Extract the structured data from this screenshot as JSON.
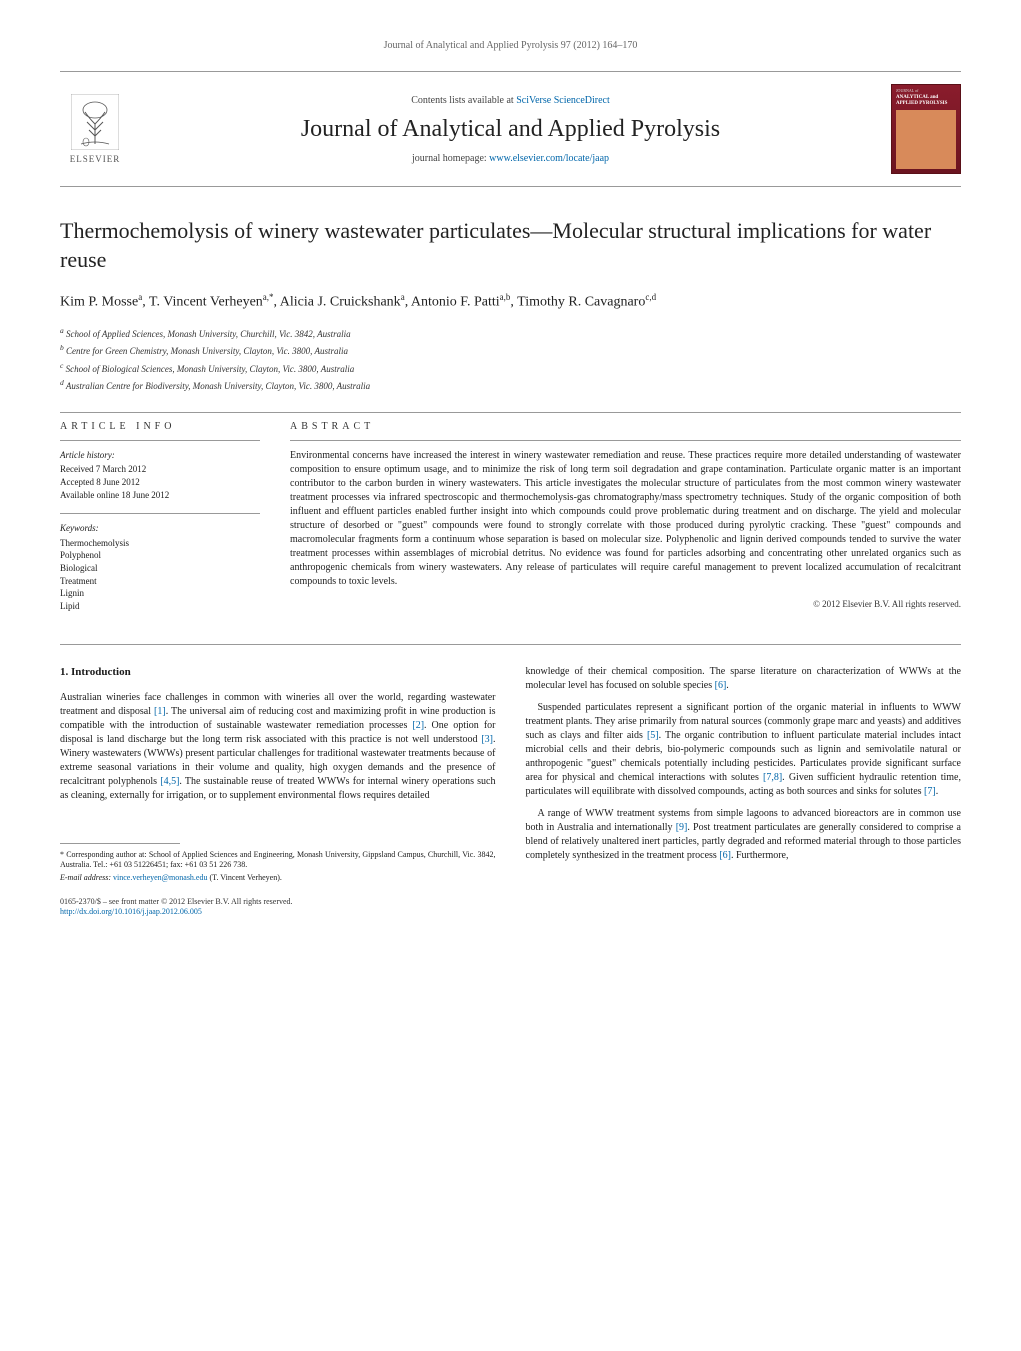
{
  "running_header": "Journal of Analytical and Applied Pyrolysis 97 (2012) 164–170",
  "masthead": {
    "publisher": "ELSEVIER",
    "contents_prefix": "Contents lists available at ",
    "contents_link": "SciVerse ScienceDirect",
    "journal_title": "Journal of Analytical and Applied Pyrolysis",
    "homepage_prefix": "journal homepage: ",
    "homepage_url": "www.elsevier.com/locate/jaap",
    "cover_top": "JOURNAL of",
    "cover_title": "ANALYTICAL and APPLIED PYROLYSIS"
  },
  "article": {
    "title": "Thermochemolysis of winery wastewater particulates—Molecular structural implications for water reuse",
    "authors_html": "Kim P. Mosse<sup>a</sup>, T. Vincent Verheyen<sup>a,*</sup>, Alicia J. Cruickshank<sup>a</sup>, Antonio F. Patti<sup>a,b</sup>, Timothy R. Cavagnaro<sup>c,d</sup>"
  },
  "affiliations": [
    "a School of Applied Sciences, Monash University, Churchill, Vic. 3842, Australia",
    "b Centre for Green Chemistry, Monash University, Clayton, Vic. 3800, Australia",
    "c School of Biological Sciences, Monash University, Clayton, Vic. 3800, Australia",
    "d Australian Centre for Biodiversity, Monash University, Clayton, Vic. 3800, Australia"
  ],
  "info": {
    "heading_info": "ARTICLE INFO",
    "history_label": "Article history:",
    "history": [
      "Received 7 March 2012",
      "Accepted 8 June 2012",
      "Available online 18 June 2012"
    ],
    "keywords_label": "Keywords:",
    "keywords": [
      "Thermochemolysis",
      "Polyphenol",
      "Biological",
      "Treatment",
      "Lignin",
      "Lipid"
    ]
  },
  "abstract": {
    "heading": "ABSTRACT",
    "text": "Environmental concerns have increased the interest in winery wastewater remediation and reuse. These practices require more detailed understanding of wastewater composition to ensure optimum usage, and to minimize the risk of long term soil degradation and grape contamination. Particulate organic matter is an important contributor to the carbon burden in winery wastewaters. This article investigates the molecular structure of particulates from the most common winery wastewater treatment processes via infrared spectroscopic and thermochemolysis-gas chromatography/mass spectrometry techniques. Study of the organic composition of both influent and effluent particles enabled further insight into which compounds could prove problematic during treatment and on discharge. The yield and molecular structure of desorbed or \"guest\" compounds were found to strongly correlate with those produced during pyrolytic cracking. These \"guest\" compounds and macromolecular fragments form a continuum whose separation is based on molecular size. Polyphenolic and lignin derived compounds tended to survive the water treatment processes within assemblages of microbial detritus. No evidence was found for particles adsorbing and concentrating other unrelated organics such as anthropogenic chemicals from winery wastewaters. Any release of particulates will require careful management to prevent localized accumulation of recalcitrant compounds to toxic levels.",
    "copyright": "© 2012 Elsevier B.V. All rights reserved."
  },
  "body": {
    "section_heading": "1. Introduction",
    "col1_p1": "Australian wineries face challenges in common with wineries all over the world, regarding wastewater treatment and disposal [1]. The universal aim of reducing cost and maximizing profit in wine production is compatible with the introduction of sustainable wastewater remediation processes [2]. One option for disposal is land discharge but the long term risk associated with this practice is not well understood [3]. Winery wastewaters (WWWs) present particular challenges for traditional wastewater treatments because of extreme seasonal variations in their volume and quality, high oxygen demands and the presence of recalcitrant polyphenols [4,5]. The sustainable reuse of treated WWWs for internal winery operations such as cleaning, externally for irrigation, or to supplement environmental flows requires detailed",
    "col2_p1": "knowledge of their chemical composition. The sparse literature on characterization of WWWs at the molecular level has focused on soluble species [6].",
    "col2_p2": "Suspended particulates represent a significant portion of the organic material in influents to WWW treatment plants. They arise primarily from natural sources (commonly grape marc and yeasts) and additives such as clays and filter aids [5]. The organic contribution to influent particulate material includes intact microbial cells and their debris, bio-polymeric compounds such as lignin and semivolatile natural or anthropogenic \"guest\" chemicals potentially including pesticides. Particulates provide significant surface area for physical and chemical interactions with solutes [7,8]. Given sufficient hydraulic retention time, particulates will equilibrate with dissolved compounds, acting as both sources and sinks for solutes [7].",
    "col2_p3": "A range of WWW treatment systems from simple lagoons to advanced bioreactors are in common use both in Australia and internationally [9]. Post treatment particulates are generally considered to comprise a blend of relatively unaltered inert particles, partly degraded and reformed material through to those particles completely synthesized in the treatment process [6]. Furthermore,"
  },
  "footnotes": {
    "corr": "* Corresponding author at: School of Applied Sciences and Engineering, Monash University, Gippsland Campus, Churchill, Vic. 3842, Australia. Tel.: +61 03 51226451; fax: +61 03 51 226 738.",
    "email_label": "E-mail address: ",
    "email": "vince.verheyen@monash.edu",
    "email_suffix": " (T. Vincent Verheyen)."
  },
  "footer": {
    "line1": "0165-2370/$ – see front matter © 2012 Elsevier B.V. All rights reserved.",
    "doi": "http://dx.doi.org/10.1016/j.jaap.2012.06.005"
  },
  "colors": {
    "link": "#0066aa",
    "cover_bg": "#8a1c2c"
  }
}
